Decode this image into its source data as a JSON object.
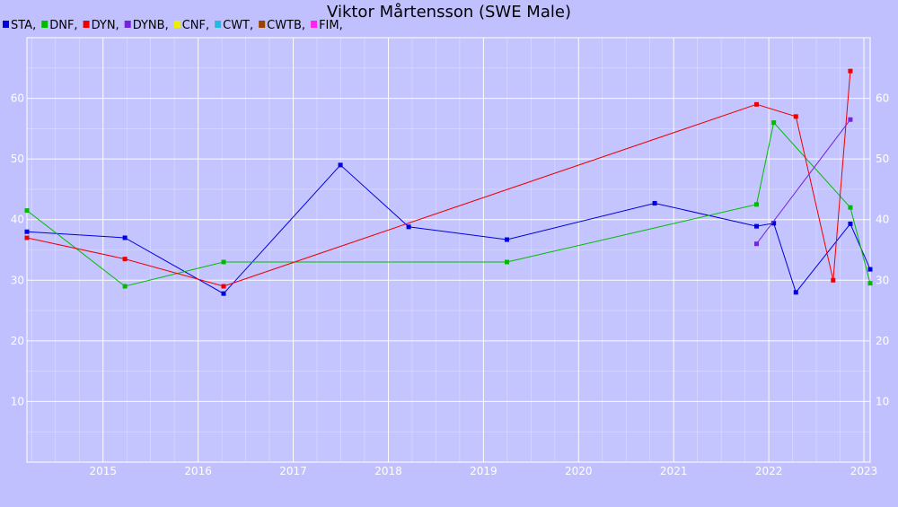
{
  "chart_data": {
    "type": "line",
    "title": "Viktor Mårtensson (SWE Male)",
    "xlabel": "",
    "ylabel": "",
    "x_ticks": [
      "2015",
      "2016",
      "2017",
      "2018",
      "2019",
      "2020",
      "2021",
      "2022",
      "2023"
    ],
    "y_ticks": [
      10,
      20,
      30,
      40,
      50,
      60
    ],
    "xlim": [
      "2014-03-15",
      "2023-01-25"
    ],
    "ylim": [
      0,
      70
    ],
    "grid": true,
    "legend_position": "top-left",
    "legend": [
      {
        "label": "STA,",
        "color": "#0000dd"
      },
      {
        "label": "DNF,",
        "color": "#00bb00"
      },
      {
        "label": "DYN,",
        "color": "#ee0000"
      },
      {
        "label": "DYNB,",
        "color": "#7722dd"
      },
      {
        "label": "CNF,",
        "color": "#eeee00"
      },
      {
        "label": "CWT,",
        "color": "#22bbdd"
      },
      {
        "label": "CWTB,",
        "color": "#994400"
      },
      {
        "label": "FIM,",
        "color": "#ff22ee"
      }
    ],
    "series": [
      {
        "name": "STA",
        "color": "#0000dd",
        "points": [
          {
            "x": "2014-03-15",
            "y": 38.0
          },
          {
            "x": "2015-03-26",
            "y": 37.0
          },
          {
            "x": "2016-04-08",
            "y": 27.8
          },
          {
            "x": "2017-07-01",
            "y": 49.0
          },
          {
            "x": "2018-03-20",
            "y": 38.8
          },
          {
            "x": "2019-04-01",
            "y": 36.7
          },
          {
            "x": "2020-10-20",
            "y": 42.7
          },
          {
            "x": "2021-11-15",
            "y": 38.9
          },
          {
            "x": "2022-01-20",
            "y": 39.4
          },
          {
            "x": "2022-04-15",
            "y": 28.0
          },
          {
            "x": "2022-11-10",
            "y": 39.3
          },
          {
            "x": "2023-01-25",
            "y": 31.8
          }
        ]
      },
      {
        "name": "DNF",
        "color": "#00bb00",
        "points": [
          {
            "x": "2014-03-15",
            "y": 41.5
          },
          {
            "x": "2015-03-26",
            "y": 29.0
          },
          {
            "x": "2016-04-08",
            "y": 33.0
          },
          {
            "x": "2019-04-01",
            "y": 33.0
          },
          {
            "x": "2021-11-15",
            "y": 42.5
          },
          {
            "x": "2022-01-20",
            "y": 56.0
          },
          {
            "x": "2022-11-10",
            "y": 42.0
          },
          {
            "x": "2023-01-25",
            "y": 29.5
          }
        ]
      },
      {
        "name": "DYN",
        "color": "#ee0000",
        "points": [
          {
            "x": "2014-03-15",
            "y": 37.0
          },
          {
            "x": "2015-03-26",
            "y": 33.5
          },
          {
            "x": "2016-04-08",
            "y": 29.0
          },
          {
            "x": "2021-11-15",
            "y": 59.0
          },
          {
            "x": "2022-04-15",
            "y": 57.0
          },
          {
            "x": "2022-09-05",
            "y": 30.0
          },
          {
            "x": "2022-11-10",
            "y": 64.5
          }
        ]
      },
      {
        "name": "DYNB",
        "color": "#7722dd",
        "points": [
          {
            "x": "2021-11-15",
            "y": 36.0
          },
          {
            "x": "2022-11-10",
            "y": 56.5
          }
        ]
      }
    ]
  }
}
